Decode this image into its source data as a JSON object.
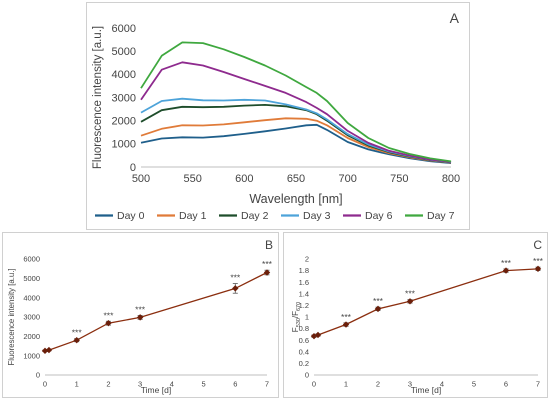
{
  "chart_data": [
    {
      "panel": "A",
      "type": "line",
      "xlabel": "Wavelength [nm]",
      "ylabel": "Fluorescence intensity [a.u.]",
      "xlim": [
        500,
        800
      ],
      "ylim": [
        0,
        6000
      ],
      "xticks": [
        "500",
        "550",
        "600",
        "650",
        "700",
        "750",
        "800"
      ],
      "yticks": [
        "0",
        "1000",
        "2000",
        "3000",
        "4000",
        "5000",
        "6000"
      ],
      "legend_position": "bottom",
      "grid": false,
      "x": [
        500,
        520,
        540,
        560,
        580,
        600,
        620,
        640,
        660,
        670,
        680,
        700,
        720,
        740,
        760,
        780,
        800
      ],
      "series": [
        {
          "name": "Day 0",
          "color": "#1f5f8b",
          "values": [
            1050,
            1230,
            1280,
            1270,
            1330,
            1430,
            1540,
            1660,
            1800,
            1820,
            1600,
            1080,
            760,
            550,
            380,
            250,
            170
          ]
        },
        {
          "name": "Day 1",
          "color": "#e07b39",
          "values": [
            1350,
            1650,
            1800,
            1790,
            1840,
            1930,
            2020,
            2100,
            2080,
            2000,
            1800,
            1250,
            860,
            600,
            420,
            280,
            190
          ]
        },
        {
          "name": "Day 2",
          "color": "#1e4d2b",
          "values": [
            1950,
            2450,
            2600,
            2580,
            2600,
            2650,
            2680,
            2620,
            2450,
            2280,
            2000,
            1370,
            930,
            640,
            450,
            300,
            200
          ]
        },
        {
          "name": "Day 3",
          "color": "#4da3d9",
          "values": [
            2350,
            2850,
            2950,
            2880,
            2870,
            2900,
            2870,
            2700,
            2480,
            2320,
            2050,
            1420,
            970,
            670,
            470,
            310,
            210
          ]
        },
        {
          "name": "Day 6",
          "color": "#8e2a8e",
          "values": [
            2900,
            4200,
            4520,
            4380,
            4100,
            3800,
            3500,
            3200,
            2800,
            2550,
            2280,
            1560,
            1040,
            700,
            490,
            320,
            220
          ]
        },
        {
          "name": "Day 7",
          "color": "#3fa83f",
          "values": [
            3400,
            4800,
            5380,
            5350,
            5080,
            4750,
            4380,
            3950,
            3450,
            3200,
            2850,
            1900,
            1250,
            820,
            560,
            370,
            240
          ]
        }
      ],
      "annotation": "A"
    },
    {
      "panel": "B",
      "type": "line",
      "xlabel": "Time [d]",
      "ylabel": "Fluorescence intensity [a.u.]",
      "xlim": [
        0,
        7
      ],
      "ylim": [
        0,
        6000
      ],
      "xticks": [
        "0",
        "1",
        "2",
        "3",
        "4",
        "5",
        "6",
        "7"
      ],
      "yticks": [
        "0",
        "1000",
        "2000",
        "3000",
        "4000",
        "5000",
        "6000"
      ],
      "color": "#8b2e0f",
      "x": [
        0,
        0.125,
        1,
        2,
        3,
        6,
        7
      ],
      "values": [
        1250,
        1290,
        1800,
        2680,
        2980,
        4480,
        5300
      ],
      "errors": [
        40,
        40,
        80,
        100,
        100,
        250,
        120
      ],
      "significance": [
        "",
        "",
        "***",
        "***",
        "***",
        "***",
        "***"
      ],
      "annotation": "B"
    },
    {
      "panel": "C",
      "type": "line",
      "xlabel": "Time [d]",
      "ylabel_main": "F",
      "ylabel_sub1": "530",
      "ylabel_slash": "/F",
      "ylabel_sub2": "670",
      "xlim": [
        0,
        7
      ],
      "ylim": [
        0,
        2
      ],
      "xticks": [
        "0",
        "1",
        "2",
        "3",
        "4",
        "5",
        "6",
        "7"
      ],
      "yticks": [
        "0",
        "0.2",
        "0.4",
        "0.6",
        "0.8",
        "1",
        "1.2",
        "1.4",
        "1.6",
        "1.8",
        "2"
      ],
      "color": "#8b2e0f",
      "x": [
        0,
        0.125,
        1,
        2,
        3,
        6,
        7
      ],
      "values": [
        0.67,
        0.69,
        0.87,
        1.14,
        1.27,
        1.8,
        1.83
      ],
      "errors": [
        0.02,
        0.02,
        0.03,
        0.03,
        0.03,
        0.03,
        0.03
      ],
      "significance": [
        "",
        "",
        "***",
        "***",
        "***",
        "***",
        "***"
      ],
      "annotation": "C"
    }
  ]
}
